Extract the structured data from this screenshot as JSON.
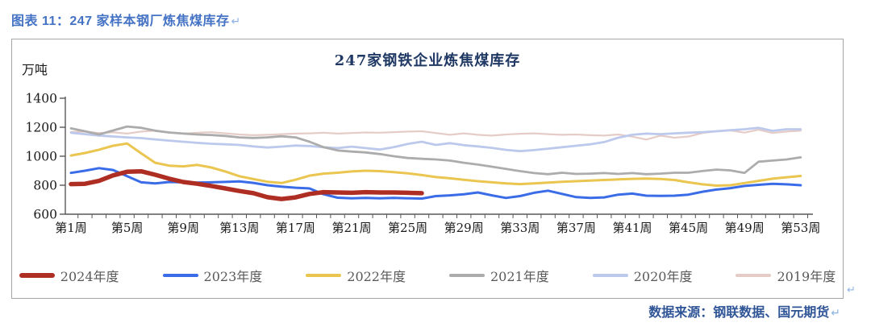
{
  "page": {
    "header": {
      "text": "图表 11：247 家样本钢厂炼焦煤库存",
      "return_mark": "↵"
    },
    "box_return_mark": "↵",
    "footer": {
      "text": "数据来源：钢联数据、国元期货",
      "return_mark": "↵"
    }
  },
  "palette": {
    "header_blue": "#4472C4",
    "footer_blue": "#2F5597",
    "title_navy": "#1F3864",
    "return_blue": "#8DB4E2",
    "box_border": "#A6A6A6",
    "axis_color": "#595959",
    "legend_text": "#595959"
  },
  "chart_data": {
    "type": "line",
    "title": "247家钢铁企业炼焦煤库存",
    "unit_label": "万吨",
    "xlabel": "",
    "ylabel": "万吨",
    "ylim": [
      600,
      1400
    ],
    "yticks": [
      600,
      800,
      1000,
      1200,
      1400
    ],
    "x_weeks": 53,
    "xtick_weeks": [
      1,
      5,
      9,
      13,
      17,
      21,
      25,
      29,
      33,
      37,
      41,
      45,
      49,
      53
    ],
    "xtick_labels": [
      "第1周",
      "第5周",
      "第9周",
      "第13周",
      "第17周",
      "第21周",
      "第25周",
      "第29周",
      "第33周",
      "第37周",
      "第41周",
      "第45周",
      "第49周",
      "第53周"
    ],
    "grid": false,
    "legend_position": "bottom",
    "series": [
      {
        "name": "2024年度",
        "color": "#AF2E23",
        "stroke_width": 5.5,
        "values": [
          808,
          810,
          830,
          868,
          893,
          896,
          872,
          845,
          822,
          810,
          795,
          778,
          760,
          745,
          717,
          705,
          716,
          740,
          752,
          750,
          748,
          752,
          750,
          750,
          748,
          745
        ]
      },
      {
        "name": "2023年度",
        "color": "#3A6CE8",
        "stroke_width": 3,
        "values": [
          885,
          900,
          918,
          905,
          862,
          820,
          812,
          822,
          820,
          818,
          820,
          823,
          826,
          816,
          800,
          790,
          783,
          778,
          738,
          714,
          710,
          712,
          710,
          712,
          710,
          708,
          725,
          730,
          738,
          750,
          730,
          712,
          725,
          748,
          762,
          740,
          718,
          712,
          716,
          735,
          742,
          728,
          726,
          728,
          735,
          755,
          770,
          780,
          795,
          803,
          810,
          806,
          800
        ]
      },
      {
        "name": "2022年度",
        "color": "#EAC54F",
        "stroke_width": 3,
        "values": [
          1005,
          1022,
          1045,
          1072,
          1088,
          1020,
          955,
          935,
          930,
          940,
          922,
          895,
          862,
          842,
          824,
          815,
          838,
          866,
          880,
          886,
          895,
          900,
          897,
          890,
          882,
          870,
          856,
          848,
          838,
          828,
          820,
          813,
          808,
          812,
          818,
          824,
          828,
          832,
          836,
          840,
          844,
          846,
          843,
          836,
          820,
          806,
          797,
          800,
          815,
          830,
          845,
          855,
          864
        ]
      },
      {
        "name": "2021年度",
        "color": "#ACACAC",
        "stroke_width": 2.8,
        "values": [
          1192,
          1172,
          1150,
          1178,
          1205,
          1196,
          1176,
          1164,
          1156,
          1150,
          1146,
          1140,
          1130,
          1126,
          1130,
          1138,
          1130,
          1100,
          1062,
          1040,
          1032,
          1026,
          1015,
          1000,
          988,
          982,
          978,
          970,
          955,
          942,
          928,
          912,
          897,
          884,
          876,
          886,
          878,
          880,
          884,
          878,
          884,
          876,
          880,
          886,
          886,
          898,
          908,
          902,
          885,
          962,
          970,
          978,
          992
        ]
      },
      {
        "name": "2020年度",
        "color": "#BCC9EC",
        "stroke_width": 2.8,
        "values": [
          1162,
          1152,
          1143,
          1136,
          1130,
          1125,
          1116,
          1108,
          1100,
          1092,
          1086,
          1082,
          1078,
          1068,
          1060,
          1066,
          1074,
          1070,
          1062,
          1056,
          1066,
          1056,
          1046,
          1062,
          1085,
          1100,
          1078,
          1090,
          1076,
          1068,
          1058,
          1044,
          1035,
          1042,
          1052,
          1062,
          1072,
          1082,
          1098,
          1128,
          1148,
          1156,
          1152,
          1158,
          1162,
          1166,
          1172,
          1180,
          1186,
          1196,
          1175,
          1186,
          1186
        ]
      },
      {
        "name": "2019年度",
        "color": "#E5CCC7",
        "stroke_width": 2.2,
        "values": [
          1168,
          1170,
          1160,
          1165,
          1156,
          1170,
          1176,
          1162,
          1156,
          1162,
          1166,
          1158,
          1150,
          1145,
          1148,
          1152,
          1156,
          1158,
          1162,
          1156,
          1160,
          1164,
          1162,
          1166,
          1170,
          1172,
          1160,
          1148,
          1158,
          1148,
          1142,
          1150,
          1155,
          1158,
          1152,
          1148,
          1150,
          1145,
          1142,
          1150,
          1135,
          1115,
          1142,
          1128,
          1136,
          1160,
          1172,
          1178,
          1163,
          1183,
          1160,
          1170,
          1176
        ]
      }
    ]
  }
}
